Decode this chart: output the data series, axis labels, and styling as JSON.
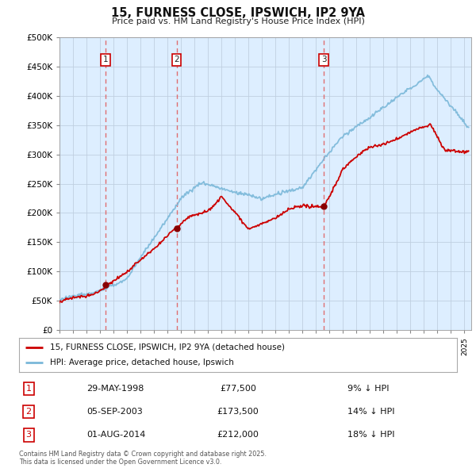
{
  "title": "15, FURNESS CLOSE, IPSWICH, IP2 9YA",
  "subtitle": "Price paid vs. HM Land Registry's House Price Index (HPI)",
  "hpi_label": "HPI: Average price, detached house, Ipswich",
  "property_label": "15, FURNESS CLOSE, IPSWICH, IP2 9YA (detached house)",
  "footer": "Contains HM Land Registry data © Crown copyright and database right 2025.\nThis data is licensed under the Open Government Licence v3.0.",
  "transactions": [
    {
      "num": 1,
      "date": "29-MAY-1998",
      "price": "£77,500",
      "diff": "9% ↓ HPI",
      "year": 1998.41
    },
    {
      "num": 2,
      "date": "05-SEP-2003",
      "price": "£173,500",
      "diff": "14% ↓ HPI",
      "year": 2003.67
    },
    {
      "num": 3,
      "date": "01-AUG-2014",
      "price": "£212,000",
      "diff": "18% ↓ HPI",
      "year": 2014.58
    }
  ],
  "transaction_prices": [
    77500,
    173500,
    212000
  ],
  "ylim": [
    0,
    500000
  ],
  "yticks": [
    0,
    50000,
    100000,
    150000,
    200000,
    250000,
    300000,
    350000,
    400000,
    450000,
    500000
  ],
  "xlim_start": 1995.0,
  "xlim_end": 2025.5,
  "hpi_color": "#7ab8d9",
  "property_color": "#cc0000",
  "vline_color": "#e06060",
  "grid_color": "#c8d8e8",
  "bg_color": "#ffffff",
  "chart_bg_color": "#ddeeff",
  "legend_border_color": "#aaaaaa"
}
